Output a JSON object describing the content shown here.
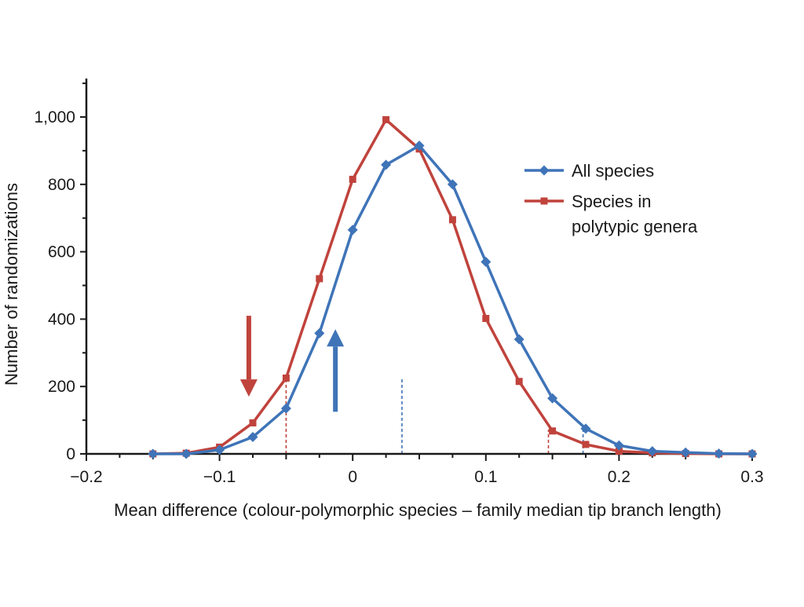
{
  "chart_data": {
    "type": "line",
    "xlabel": "Mean difference (colour-polymorphic species – family median tip branch length)",
    "ylabel": "Number of randomizations",
    "xlim": [
      -0.2,
      0.3
    ],
    "ylim": [
      0,
      1000
    ],
    "x_ticks": [
      -0.2,
      -0.1,
      0,
      0.1,
      0.2,
      0.3
    ],
    "x_tick_labels": [
      "−0.2",
      "−0.1",
      "0",
      "0.1",
      "0.2",
      "0.3"
    ],
    "y_ticks": [
      0,
      200,
      400,
      600,
      800,
      1000
    ],
    "y_tick_labels": [
      "0",
      "200",
      "400",
      "600",
      "800",
      "1,000"
    ],
    "grid": false,
    "legend_position": "right",
    "series": [
      {
        "name": "All species",
        "color": "#3f74b8",
        "marker": "diamond",
        "x": [
          -0.15,
          -0.125,
          -0.1,
          -0.075,
          -0.05,
          -0.025,
          0,
          0.025,
          0.05,
          0.075,
          0.1,
          0.125,
          0.15,
          0.175,
          0.2,
          0.225,
          0.25,
          0.275,
          0.3
        ],
        "y": [
          0,
          0,
          12,
          50,
          135,
          358,
          665,
          858,
          915,
          800,
          570,
          340,
          165,
          75,
          25,
          8,
          4,
          1,
          0
        ],
        "critical_value": 0.037,
        "critical_height": 225
      },
      {
        "name": "Species in polytypic genera",
        "legend_lines": [
          "Species in",
          "polytypic genera"
        ],
        "color": "#c0433c",
        "marker": "square",
        "x": [
          -0.15,
          -0.125,
          -0.1,
          -0.075,
          -0.05,
          -0.025,
          0,
          0.025,
          0.05,
          0.075,
          0.1,
          0.125,
          0.15,
          0.175,
          0.2,
          0.225,
          0.25,
          0.275,
          0.3
        ],
        "y": [
          0,
          2,
          20,
          92,
          225,
          520,
          815,
          992,
          905,
          695,
          402,
          215,
          68,
          28,
          8,
          3,
          1,
          0,
          0
        ],
        "critical_lower": -0.05,
        "critical_lower_height": 225,
        "critical_upper": 0.147,
        "critical_upper_height": 72
      }
    ],
    "annotations": [
      {
        "type": "arrow",
        "direction": "down",
        "color": "#c0433c",
        "x": -0.078,
        "y_from": 410,
        "y_to": 170
      },
      {
        "type": "arrow",
        "direction": "up",
        "color": "#3f74b8",
        "x": -0.013,
        "y_from": 125,
        "y_to": 370
      }
    ]
  }
}
